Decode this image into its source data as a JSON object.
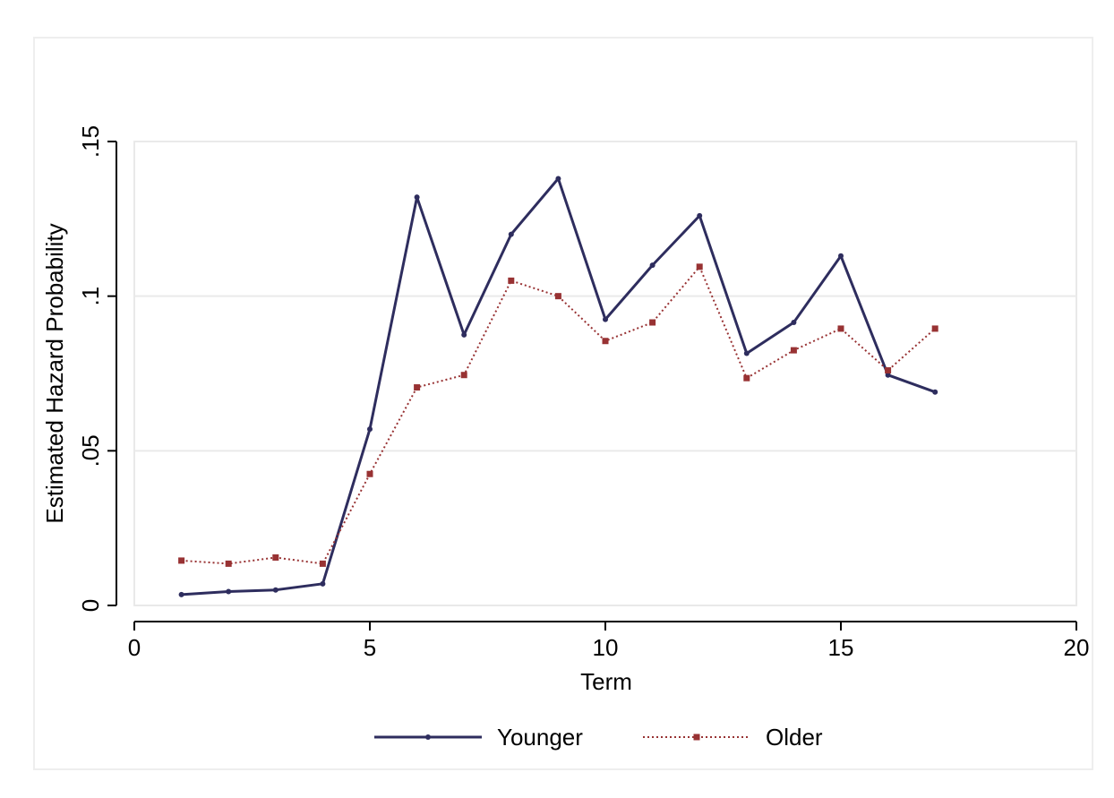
{
  "chart_data": {
    "type": "line",
    "xlabel": "Term",
    "ylabel": "Estimated Hazard Probability",
    "xlim": [
      0,
      20
    ],
    "ylim": [
      0,
      0.15
    ],
    "x_ticks": [
      {
        "value": 0,
        "label": "0"
      },
      {
        "value": 5,
        "label": "5"
      },
      {
        "value": 10,
        "label": "10"
      },
      {
        "value": 15,
        "label": "15"
      },
      {
        "value": 20,
        "label": "20"
      }
    ],
    "y_ticks": [
      {
        "value": 0,
        "label": "0"
      },
      {
        "value": 0.05,
        "label": ".05"
      },
      {
        "value": 0.1,
        "label": ".1"
      },
      {
        "value": 0.15,
        "label": ".15"
      }
    ],
    "grid": true,
    "legend_position": "bottom",
    "x": [
      1,
      2,
      3,
      4,
      5,
      6,
      7,
      8,
      9,
      10,
      11,
      12,
      13,
      14,
      15,
      16,
      17
    ],
    "series": [
      {
        "name": "Younger",
        "color": "#2e2d5e",
        "style": "solid",
        "marker": "circle",
        "values": [
          0.0035,
          0.0045,
          0.005,
          0.007,
          0.057,
          0.132,
          0.0875,
          0.12,
          0.138,
          0.0925,
          0.11,
          0.126,
          0.0815,
          0.0915,
          0.113,
          0.0745,
          0.069
        ]
      },
      {
        "name": "Older",
        "color": "#983233",
        "style": "dotted",
        "marker": "square",
        "values": [
          0.0145,
          0.0135,
          0.0155,
          0.0135,
          0.0425,
          0.0705,
          0.0745,
          0.105,
          0.1,
          0.0855,
          0.0915,
          0.1095,
          0.0735,
          0.0825,
          0.0895,
          0.076,
          0.0895
        ]
      }
    ]
  }
}
